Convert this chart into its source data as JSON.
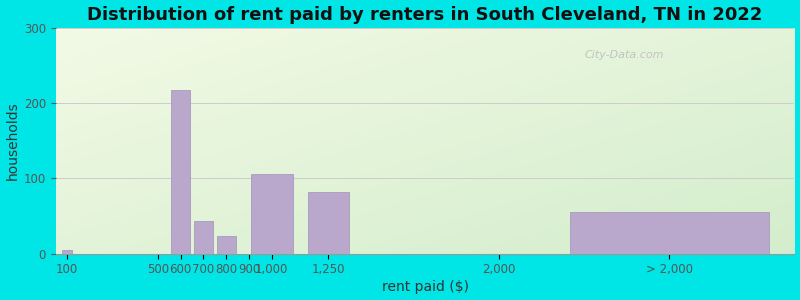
{
  "title": "Distribution of rent paid by renters in South Cleveland, TN in 2022",
  "xlabel": "rent paid ($)",
  "ylabel": "households",
  "background_outer": "#00e5e5",
  "bar_color": "#b9a8cc",
  "bar_edge_color": "#a090bb",
  "ylim": [
    0,
    300
  ],
  "yticks": [
    0,
    100,
    200,
    300
  ],
  "title_fontsize": 13,
  "axis_label_fontsize": 10,
  "tick_fontsize": 8.5,
  "watermark": "City-Data.com",
  "x_positions": [
    100,
    500,
    600,
    700,
    800,
    900,
    1000,
    1250,
    2000,
    2750
  ],
  "bar_widths": [
    50,
    50,
    90,
    90,
    90,
    90,
    200,
    200,
    100,
    950
  ],
  "values": [
    5,
    0,
    218,
    43,
    23,
    0,
    106,
    82,
    0,
    55
  ],
  "tick_labels": [
    "100",
    "500",
    "600",
    "700",
    "800",
    "900",
    "1,000",
    "1,250",
    "2,000",
    "> 2,000"
  ],
  "tick_positions": [
    100,
    500,
    600,
    700,
    800,
    900,
    1000,
    1250,
    2000,
    2750
  ]
}
